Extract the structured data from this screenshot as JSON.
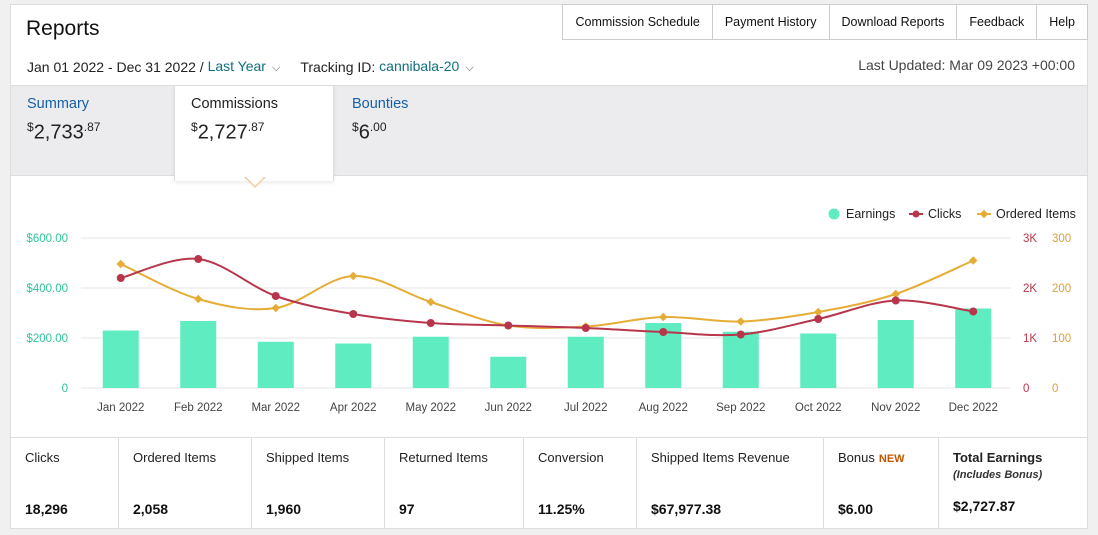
{
  "page": {
    "title": "Reports"
  },
  "nav": [
    {
      "label": "Commission Schedule"
    },
    {
      "label": "Payment History"
    },
    {
      "label": "Download Reports"
    },
    {
      "label": "Feedback"
    },
    {
      "label": "Help"
    }
  ],
  "filters": {
    "date_range": "Jan 01 2022 - Dec 31 2022 /",
    "period": "Last Year",
    "tracking_label": "Tracking ID:",
    "tracking_id": "cannibala-20",
    "last_updated": "Last Updated: Mar 09 2023 +00:00"
  },
  "tabs": [
    {
      "label": "Summary",
      "currency": "$",
      "whole": "2,733",
      "cents": ".87"
    },
    {
      "label": "Commissions",
      "currency": "$",
      "whole": "2,727",
      "cents": ".87"
    },
    {
      "label": "Bounties",
      "currency": "$",
      "whole": "6",
      "cents": ".00"
    }
  ],
  "chart_data": {
    "type": "bar",
    "categories": [
      "Jan 2022",
      "Feb 2022",
      "Mar 2022",
      "Apr 2022",
      "May 2022",
      "Jun 2022",
      "Jul 2022",
      "Aug 2022",
      "Sep 2022",
      "Oct 2022",
      "Nov 2022",
      "Dec 2022"
    ],
    "series": [
      {
        "name": "Earnings",
        "type": "bar",
        "axis": "left",
        "color": "#5eecc0",
        "values": [
          230,
          268,
          185,
          178,
          205,
          125,
          205,
          260,
          225,
          218,
          272,
          318
        ]
      },
      {
        "name": "Clicks",
        "type": "line",
        "axis": "right1",
        "color": "#b8364c",
        "values": [
          2200,
          2580,
          1840,
          1480,
          1300,
          1250,
          1200,
          1120,
          1070,
          1380,
          1750,
          1530
        ]
      },
      {
        "name": "Ordered Items",
        "type": "line",
        "axis": "right2",
        "color": "#e5ad35",
        "values": [
          248,
          178,
          160,
          224,
          172,
          125,
          123,
          142,
          133,
          152,
          188,
          255
        ]
      }
    ],
    "left_axis": {
      "ticks": [
        "0",
        "$200.00",
        "$400.00",
        "$600.00"
      ],
      "min": 0,
      "max": 600,
      "color": "#2fc39a"
    },
    "right_axis_1": {
      "ticks": [
        "0",
        "1K",
        "2K",
        "3K"
      ],
      "min": 0,
      "max": 3000,
      "color": "#b8364c"
    },
    "right_axis_2": {
      "ticks": [
        "0",
        "100",
        "200",
        "300"
      ],
      "min": 0,
      "max": 300,
      "color": "#d9a13a"
    },
    "legend": {
      "placement": "top-right"
    },
    "grid": true
  },
  "stats": [
    {
      "label": "Clicks",
      "value": "18,296"
    },
    {
      "label": "Ordered Items",
      "value": "2,058"
    },
    {
      "label": "Shipped Items",
      "value": "1,960"
    },
    {
      "label": "Returned Items",
      "value": "97"
    },
    {
      "label": "Conversion",
      "value": "11.25%"
    },
    {
      "label": "Shipped Items Revenue",
      "value": "$67,977.38"
    },
    {
      "label": "Bonus",
      "badge": "NEW",
      "value": "$6.00"
    },
    {
      "label": "Total Earnings",
      "sublabel": "(Includes Bonus)",
      "value": "$2,727.87"
    }
  ]
}
